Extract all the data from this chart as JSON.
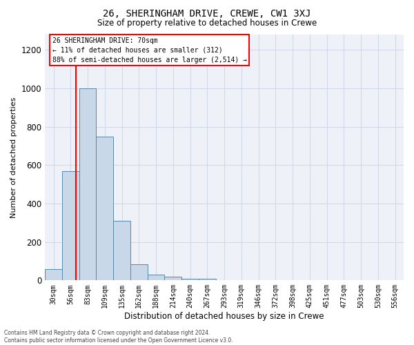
{
  "title": "26, SHERINGHAM DRIVE, CREWE, CW1 3XJ",
  "subtitle": "Size of property relative to detached houses in Crewe",
  "xlabel": "Distribution of detached houses by size in Crewe",
  "ylabel": "Number of detached properties",
  "annotation_lines": [
    "26 SHERINGHAM DRIVE: 70sqm",
    "← 11% of detached houses are smaller (312)",
    "88% of semi-detached houses are larger (2,514) →"
  ],
  "bar_labels": [
    "30sqm",
    "56sqm",
    "83sqm",
    "109sqm",
    "135sqm",
    "162sqm",
    "188sqm",
    "214sqm",
    "240sqm",
    "267sqm",
    "293sqm",
    "319sqm",
    "346sqm",
    "372sqm",
    "398sqm",
    "425sqm",
    "451sqm",
    "477sqm",
    "503sqm",
    "530sqm",
    "556sqm"
  ],
  "bar_values": [
    60,
    570,
    1000,
    750,
    310,
    85,
    30,
    20,
    10,
    10,
    0,
    0,
    0,
    0,
    0,
    0,
    0,
    0,
    0,
    0,
    0
  ],
  "bar_color": "#c8d8e8",
  "bar_edge_color": "#5588aa",
  "red_line_x": 1.3,
  "ylim": [
    0,
    1280
  ],
  "yticks": [
    0,
    200,
    400,
    600,
    800,
    1000,
    1200
  ],
  "grid_color": "#d0d8e8",
  "background_color": "#eef2f8",
  "footer_line1": "Contains HM Land Registry data © Crown copyright and database right 2024.",
  "footer_line2": "Contains public sector information licensed under the Open Government Licence v3.0."
}
